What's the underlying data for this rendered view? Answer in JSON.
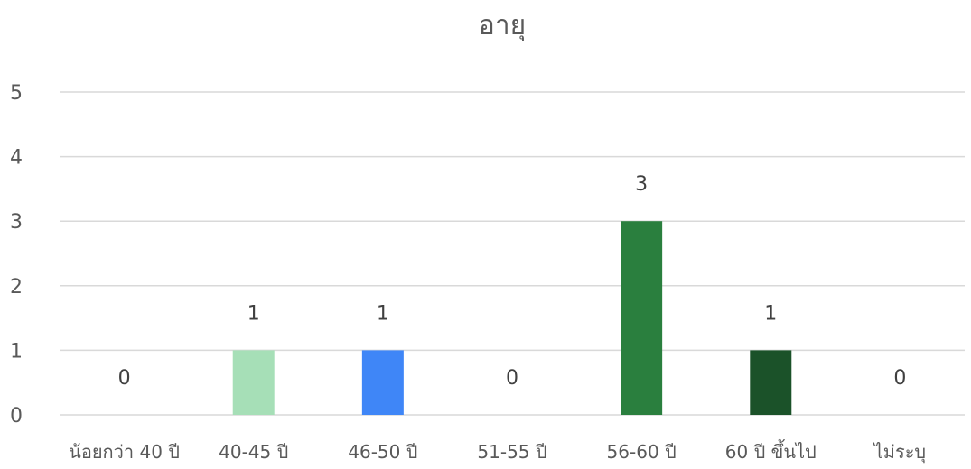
{
  "chart_data": {
    "type": "bar",
    "title": "อายุ",
    "xlabel": "",
    "ylabel": "",
    "categories": [
      "น้อยกว่า 40 ปี",
      "40-45 ปี",
      "46-50 ปี",
      "51-55 ปี",
      "56-60 ปี",
      "60 ปี ขึ้นไป",
      "ไม่ระบุ"
    ],
    "values": [
      0,
      1,
      1,
      0,
      3,
      1,
      0
    ],
    "data_labels": [
      "0",
      "1",
      "1",
      "0",
      "3",
      "1",
      "0"
    ],
    "bar_colors": [
      "#a6dfb7",
      "#a6dfb7",
      "#3f86f7",
      "#2a7f3e",
      "#2a7f3e",
      "#1b5229",
      "#1b5229"
    ],
    "ylim": [
      0,
      5
    ],
    "yticks": [
      "0",
      "1",
      "2",
      "3",
      "4",
      "5"
    ],
    "grid": true,
    "legend": "none"
  }
}
